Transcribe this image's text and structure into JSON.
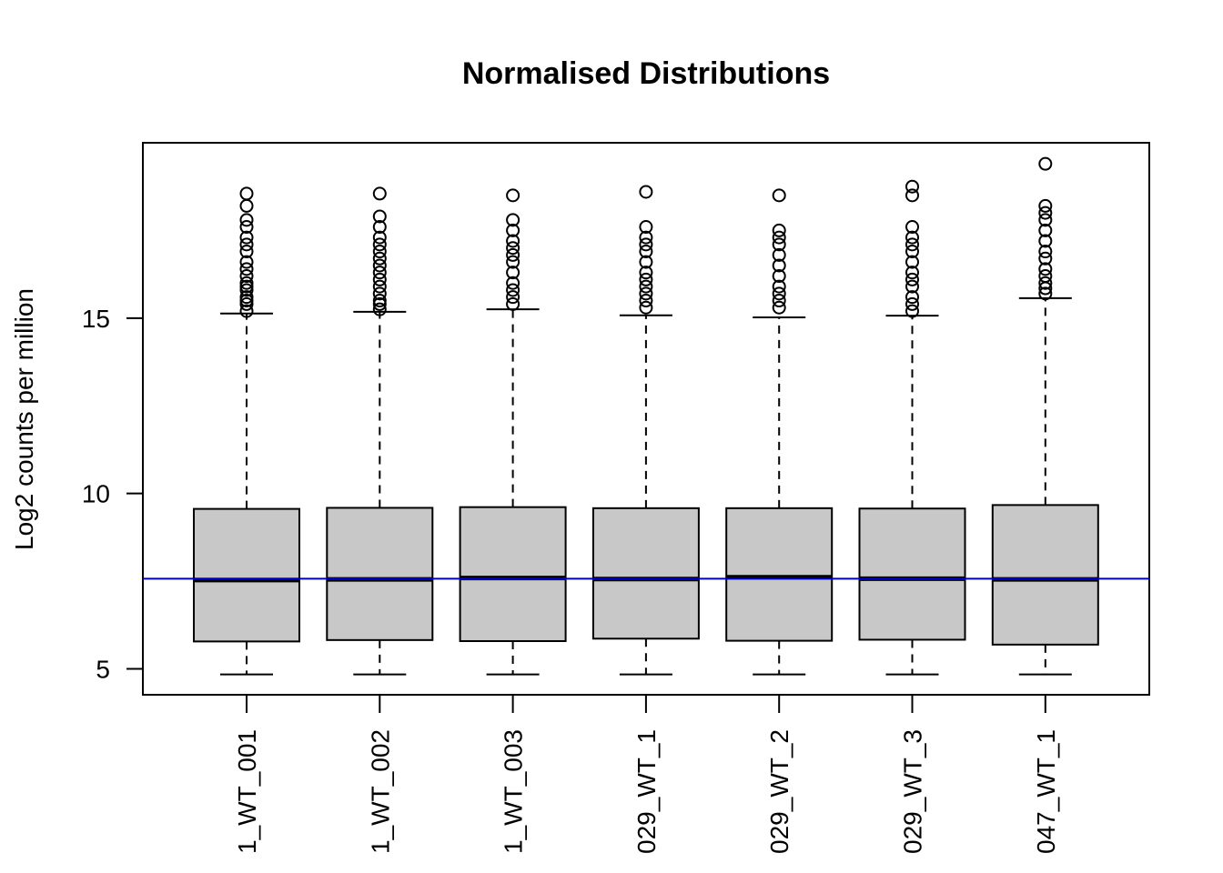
{
  "chart_data": {
    "type": "boxplot",
    "title": "Normalised Distributions",
    "xlabel": "",
    "ylabel": "Log2 counts per million",
    "ylim": [
      4.26,
      20.0
    ],
    "yticks": [
      5,
      10,
      15
    ],
    "grid": false,
    "reference_line": {
      "y": 7.57,
      "color": "#0000cc"
    },
    "box_fill": "#c8c8c8",
    "categories": [
      "1_WT_001",
      "1_WT_002",
      "1_WT_003",
      "029_WT_1",
      "029_WT_2",
      "029_WT_3",
      "047_WT_1"
    ],
    "boxes": [
      {
        "min": 4.84,
        "q1": 5.78,
        "median": 7.53,
        "q3": 9.56,
        "max": 15.13,
        "outliers": [
          15.2,
          15.4,
          15.5,
          15.6,
          15.8,
          15.9,
          16.0,
          16.2,
          16.4,
          16.6,
          16.9,
          17.1,
          17.3,
          17.6,
          17.8,
          18.2,
          18.55
        ]
      },
      {
        "min": 4.84,
        "q1": 5.82,
        "median": 7.55,
        "q3": 9.59,
        "max": 15.18,
        "outliers": [
          15.25,
          15.4,
          15.5,
          15.7,
          15.9,
          16.1,
          16.3,
          16.5,
          16.7,
          16.9,
          17.1,
          17.3,
          17.6,
          17.9,
          18.55
        ]
      },
      {
        "min": 4.84,
        "q1": 5.79,
        "median": 7.59,
        "q3": 9.61,
        "max": 15.25,
        "outliers": [
          15.4,
          15.6,
          15.8,
          16.0,
          16.3,
          16.6,
          16.8,
          17.0,
          17.2,
          17.5,
          17.8,
          18.5
        ]
      },
      {
        "min": 4.84,
        "q1": 5.86,
        "median": 7.56,
        "q3": 9.58,
        "max": 15.08,
        "outliers": [
          15.3,
          15.5,
          15.7,
          15.9,
          16.1,
          16.3,
          16.6,
          16.9,
          17.1,
          17.3,
          17.6,
          18.6
        ]
      },
      {
        "min": 4.84,
        "q1": 5.8,
        "median": 7.61,
        "q3": 9.58,
        "max": 15.02,
        "outliers": [
          15.3,
          15.5,
          15.7,
          15.9,
          16.2,
          16.5,
          16.8,
          17.1,
          17.3,
          17.5,
          18.5
        ]
      },
      {
        "min": 4.84,
        "q1": 5.83,
        "median": 7.57,
        "q3": 9.57,
        "max": 15.07,
        "outliers": [
          15.2,
          15.4,
          15.6,
          15.9,
          16.1,
          16.3,
          16.6,
          16.9,
          17.1,
          17.3,
          17.6,
          18.5,
          18.75
        ]
      },
      {
        "min": 4.84,
        "q1": 5.69,
        "median": 7.55,
        "q3": 9.67,
        "max": 15.57,
        "outliers": [
          15.7,
          15.85,
          16.0,
          16.2,
          16.4,
          16.7,
          16.9,
          17.2,
          17.5,
          17.8,
          18.0,
          18.2,
          19.4
        ]
      }
    ]
  }
}
